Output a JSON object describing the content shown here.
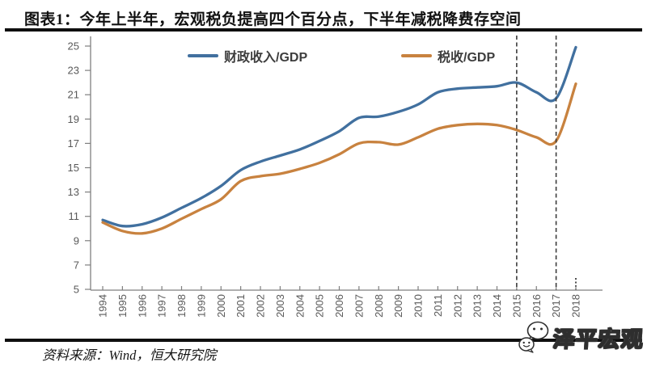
{
  "header": {
    "title": "图表1：今年上半年，宏观税负提高四个百分点，下半年减税降费存空间"
  },
  "footer": {
    "source": "资料来源：Wind，恒大研究院",
    "watermark": "泽平宏观",
    "watermark_icon": "wechat-bubbles-icon"
  },
  "chart_data": {
    "type": "line",
    "x": [
      1994,
      1995,
      1996,
      1997,
      1998,
      1999,
      2000,
      2001,
      2002,
      2003,
      2004,
      2005,
      2006,
      2007,
      2008,
      2009,
      2010,
      2011,
      2012,
      2013,
      2014,
      2015,
      2016,
      2017,
      2018
    ],
    "series": [
      {
        "name": "财政收入/GDP",
        "color": "#41709f",
        "values": [
          10.7,
          10.2,
          10.35,
          10.9,
          11.7,
          12.5,
          13.5,
          14.8,
          15.5,
          16.0,
          16.5,
          17.2,
          18.0,
          19.1,
          19.2,
          19.6,
          20.2,
          21.2,
          21.5,
          21.6,
          21.7,
          22.0,
          21.2,
          20.7,
          24.9
        ]
      },
      {
        "name": "税收/GDP",
        "color": "#c8823f",
        "values": [
          10.5,
          9.8,
          9.6,
          10.0,
          10.8,
          11.6,
          12.4,
          13.9,
          14.3,
          14.5,
          14.9,
          15.4,
          16.1,
          17.0,
          17.1,
          16.9,
          17.5,
          18.2,
          18.5,
          18.6,
          18.5,
          18.1,
          17.5,
          17.2,
          21.9
        ]
      }
    ],
    "ylim": [
      5,
      25
    ],
    "yticks": [
      5,
      7,
      9,
      11,
      13,
      15,
      17,
      19,
      21,
      23,
      25
    ],
    "grid": false,
    "legend_position": "top-inside",
    "vlines": [
      2015,
      2017
    ],
    "vline_stub": 2018,
    "axis_color": "#7f7f7f",
    "tick_label_color": "#595959",
    "vline_color": "#3c3c3c"
  }
}
